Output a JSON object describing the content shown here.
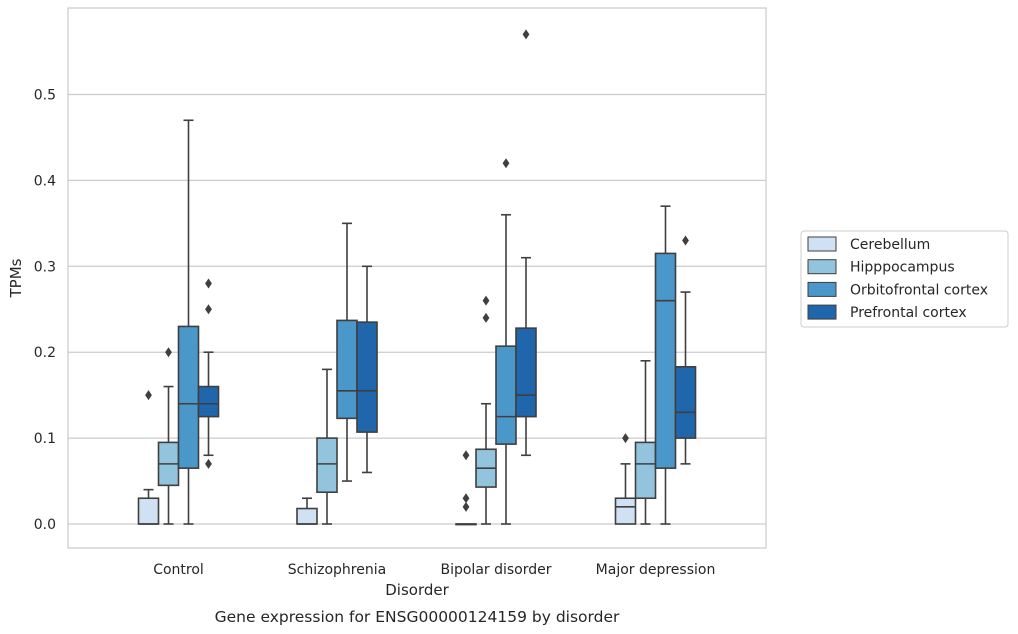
{
  "chart_data": {
    "type": "box",
    "title": "",
    "caption": "Gene expression for ENSG00000124159 by disorder",
    "xlabel": "Disorder",
    "ylabel": "TPMs",
    "ylim": [
      -0.028,
      0.605
    ],
    "yticks": [
      0.0,
      0.1,
      0.2,
      0.3,
      0.4,
      0.5
    ],
    "ytick_labels": [
      "0.0",
      "0.1",
      "0.2",
      "0.3",
      "0.4",
      "0.5"
    ],
    "grid": "horizontal",
    "legend_position": "right",
    "categories": [
      "Control",
      "Schizophrenia",
      "Bipolar disorder",
      "Major depression"
    ],
    "series": [
      {
        "name": "Cerebellum",
        "color": "#cfe1f2",
        "boxes": [
          {
            "q1": 0.0,
            "median": 0.0,
            "q3": 0.03,
            "whisker_low": 0.0,
            "whisker_high": 0.04,
            "outliers": [
              0.15
            ]
          },
          {
            "q1": 0.0,
            "median": 0.0,
            "q3": 0.018,
            "whisker_low": 0.0,
            "whisker_high": 0.03,
            "outliers": []
          },
          {
            "q1": 0.0,
            "median": 0.0,
            "q3": 0.0,
            "whisker_low": 0.0,
            "whisker_high": 0.0,
            "outliers": [
              0.08,
              0.03,
              0.02
            ]
          },
          {
            "q1": 0.0,
            "median": 0.02,
            "q3": 0.03,
            "whisker_low": 0.0,
            "whisker_high": 0.07,
            "outliers": [
              0.1
            ]
          }
        ]
      },
      {
        "name": "Hipppocampus",
        "color": "#93c4de",
        "boxes": [
          {
            "q1": 0.045,
            "median": 0.07,
            "q3": 0.095,
            "whisker_low": 0.0,
            "whisker_high": 0.16,
            "outliers": [
              0.2
            ]
          },
          {
            "q1": 0.037,
            "median": 0.07,
            "q3": 0.1,
            "whisker_low": 0.0,
            "whisker_high": 0.18,
            "outliers": []
          },
          {
            "q1": 0.043,
            "median": 0.065,
            "q3": 0.087,
            "whisker_low": 0.0,
            "whisker_high": 0.14,
            "outliers": [
              0.26,
              0.24
            ]
          },
          {
            "q1": 0.03,
            "median": 0.07,
            "q3": 0.095,
            "whisker_low": 0.0,
            "whisker_high": 0.19,
            "outliers": []
          }
        ]
      },
      {
        "name": "Orbitofrontal cortex",
        "color": "#4a97c9",
        "boxes": [
          {
            "q1": 0.065,
            "median": 0.14,
            "q3": 0.23,
            "whisker_low": 0.0,
            "whisker_high": 0.47,
            "outliers": []
          },
          {
            "q1": 0.123,
            "median": 0.155,
            "q3": 0.237,
            "whisker_low": 0.05,
            "whisker_high": 0.35,
            "outliers": []
          },
          {
            "q1": 0.093,
            "median": 0.125,
            "q3": 0.207,
            "whisker_low": 0.0,
            "whisker_high": 0.36,
            "outliers": [
              0.42
            ]
          },
          {
            "q1": 0.065,
            "median": 0.26,
            "q3": 0.315,
            "whisker_low": 0.0,
            "whisker_high": 0.37,
            "outliers": []
          }
        ]
      },
      {
        "name": "Prefrontal cortex",
        "color": "#2066ac",
        "boxes": [
          {
            "q1": 0.125,
            "median": 0.14,
            "q3": 0.16,
            "whisker_low": 0.08,
            "whisker_high": 0.2,
            "outliers": [
              0.28,
              0.25,
              0.07
            ]
          },
          {
            "q1": 0.107,
            "median": 0.155,
            "q3": 0.235,
            "whisker_low": 0.06,
            "whisker_high": 0.3,
            "outliers": []
          },
          {
            "q1": 0.125,
            "median": 0.15,
            "q3": 0.228,
            "whisker_low": 0.08,
            "whisker_high": 0.31,
            "outliers": [
              0.57
            ]
          },
          {
            "q1": 0.1,
            "median": 0.13,
            "q3": 0.183,
            "whisker_low": 0.07,
            "whisker_high": 0.27,
            "outliers": [
              0.33
            ]
          }
        ]
      }
    ]
  }
}
